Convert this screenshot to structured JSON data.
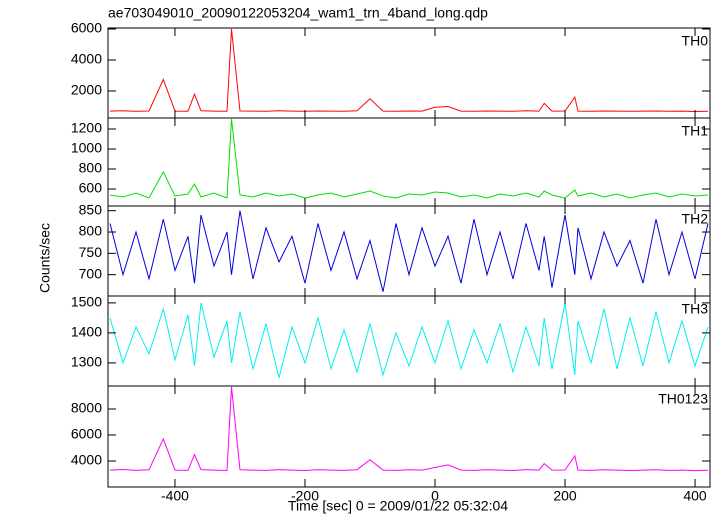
{
  "chart_data": {
    "type": "line",
    "title": "ae703049010_20090122053204_wam1_trn_4band_long.qdp",
    "xlabel": "Time [sec] 0 = 2009/01/22 05:32:04",
    "ylabel": "Counts/sec",
    "x": [
      -500,
      -480,
      -460,
      -440,
      -418,
      -400,
      -380,
      -370,
      -360,
      -340,
      -320,
      -313,
      -300,
      -280,
      -260,
      -240,
      -220,
      -200,
      -180,
      -160,
      -140,
      -120,
      -100,
      -80,
      -60,
      -40,
      -20,
      0,
      20,
      40,
      60,
      80,
      100,
      120,
      140,
      160,
      168,
      180,
      200,
      215,
      220,
      240,
      260,
      280,
      300,
      320,
      340,
      360,
      380,
      400,
      420
    ],
    "xlim": [
      -503,
      423
    ],
    "xticks": [
      -400,
      -200,
      0,
      200,
      400
    ],
    "series": [
      {
        "name": "TH0",
        "color": "#ff0000",
        "ylim": [
          258,
          6065
        ],
        "yticks": [
          2000,
          4000,
          6000
        ],
        "values": [
          700,
          720,
          690,
          710,
          2750,
          700,
          690,
          1800,
          720,
          700,
          690,
          6000,
          710,
          700,
          690,
          720,
          700,
          690,
          710,
          700,
          690,
          720,
          1500,
          700,
          690,
          710,
          700,
          950,
          1000,
          700,
          690,
          710,
          700,
          690,
          720,
          700,
          1200,
          700,
          710,
          1600,
          700,
          690,
          710,
          700,
          690,
          700,
          710,
          690,
          700,
          680,
          690
        ]
      },
      {
        "name": "TH1",
        "color": "#00e000",
        "ylim": [
          430,
          1310
        ],
        "yticks": [
          600,
          800,
          1000,
          1200
        ],
        "values": [
          540,
          520,
          560,
          510,
          770,
          530,
          550,
          650,
          520,
          560,
          510,
          1300,
          540,
          520,
          560,
          530,
          550,
          510,
          540,
          560,
          520,
          550,
          580,
          530,
          510,
          550,
          540,
          570,
          560,
          520,
          540,
          510,
          550,
          530,
          560,
          520,
          580,
          540,
          510,
          590,
          530,
          560,
          520,
          550,
          510,
          540,
          560,
          520,
          550,
          530,
          540
        ]
      },
      {
        "name": "TH2",
        "color": "#0000e0",
        "ylim": [
          650,
          861
        ],
        "yticks": [
          700,
          750,
          800,
          850
        ],
        "values": [
          820,
          700,
          800,
          690,
          830,
          710,
          790,
          680,
          840,
          720,
          800,
          700,
          850,
          690,
          810,
          730,
          790,
          680,
          820,
          710,
          800,
          690,
          780,
          660,
          820,
          700,
          810,
          720,
          790,
          680,
          830,
          700,
          800,
          690,
          820,
          710,
          790,
          670,
          840,
          700,
          810,
          690,
          800,
          720,
          780,
          680,
          830,
          700,
          800,
          690,
          820
        ]
      },
      {
        "name": "TH3",
        "color": "#00f0f0",
        "ylim": [
          1223,
          1523
        ],
        "yticks": [
          1300,
          1400,
          1500
        ],
        "values": [
          1450,
          1300,
          1420,
          1330,
          1480,
          1310,
          1460,
          1290,
          1500,
          1320,
          1440,
          1300,
          1470,
          1280,
          1430,
          1250,
          1420,
          1300,
          1450,
          1280,
          1410,
          1270,
          1430,
          1260,
          1400,
          1290,
          1420,
          1300,
          1440,
          1280,
          1410,
          1300,
          1430,
          1270,
          1420,
          1290,
          1450,
          1280,
          1500,
          1260,
          1440,
          1300,
          1480,
          1280,
          1450,
          1290,
          1470,
          1300,
          1440,
          1290,
          1420
        ]
      },
      {
        "name": "TH0123",
        "color": "#ff00ff",
        "ylim": [
          2000,
          9770
        ],
        "yticks": [
          4000,
          6000,
          8000
        ],
        "values": [
          3300,
          3350,
          3280,
          3320,
          5700,
          3300,
          3280,
          4500,
          3340,
          3300,
          3270,
          9700,
          3320,
          3300,
          3280,
          3340,
          3300,
          3270,
          3320,
          3300,
          3280,
          3330,
          4100,
          3300,
          3280,
          3320,
          3300,
          3500,
          3700,
          3300,
          3280,
          3320,
          3300,
          3270,
          3340,
          3300,
          3800,
          3300,
          3310,
          4400,
          3300,
          3280,
          3320,
          3300,
          3270,
          3300,
          3320,
          3280,
          3300,
          3260,
          3290
        ]
      }
    ]
  }
}
